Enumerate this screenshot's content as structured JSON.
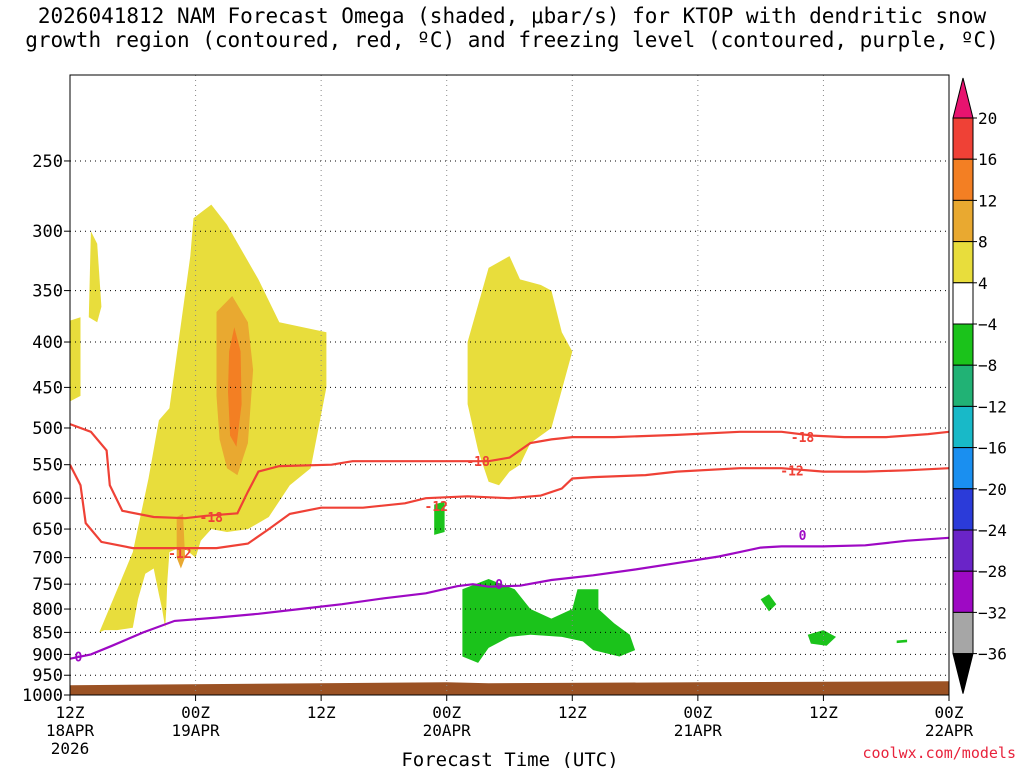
{
  "title_line1": "2026041812 NAM Forecast Omega (shaded, μbar/s) for KTOP with dendritic snow",
  "title_line2": "growth region (contoured, red, ºC) and freezing level (contoured, purple, ºC)",
  "credit": "coolwx.com/models",
  "chart_data": {
    "type": "heatmap",
    "xlabel": "Forecast Time (UTC)",
    "x_ticks": [
      {
        "h": 0,
        "label": "12Z",
        "sub": "18APR",
        "sub2": "2026"
      },
      {
        "h": 12,
        "label": "00Z",
        "sub": "19APR"
      },
      {
        "h": 24,
        "label": "12Z"
      },
      {
        "h": 36,
        "label": "00Z",
        "sub": "20APR"
      },
      {
        "h": 48,
        "label": "12Z"
      },
      {
        "h": 60,
        "label": "00Z",
        "sub": "21APR"
      },
      {
        "h": 72,
        "label": "12Z"
      },
      {
        "h": 84,
        "label": "00Z",
        "sub": "22APR"
      }
    ],
    "xlim_hours": [
      0,
      84
    ],
    "y_ticks": [
      250,
      300,
      350,
      400,
      450,
      500,
      550,
      600,
      650,
      700,
      750,
      800,
      850,
      900,
      950,
      1000
    ],
    "ylim_hpa": [
      200,
      1000
    ],
    "y_scale": "log",
    "colorbar": {
      "levels": [
        20,
        16,
        12,
        8,
        4,
        -4,
        -8,
        -12,
        -16,
        -20,
        -24,
        -28,
        -32,
        -36
      ],
      "colors": [
        "#e8136f",
        "#ef4136",
        "#f37f23",
        "#e9a930",
        "#e8dd3c",
        "#ffffff",
        "#1bc31b",
        "#21b275",
        "#18b9c8",
        "#1a8ff0",
        "#2b3bd9",
        "#6a24c8",
        "#9e09c4",
        "#a6a6a6",
        "#000000"
      ]
    },
    "omega_regions": [
      {
        "sign": "positive",
        "level": 4,
        "color": "#e8dd3c",
        "points": [
          [
            -0.5,
            380
          ],
          [
            1,
            375
          ],
          [
            1,
            460
          ],
          [
            -0.5,
            470
          ]
        ]
      },
      {
        "sign": "positive",
        "level": 4,
        "color": "#e8dd3c",
        "points": [
          [
            2,
            300
          ],
          [
            2.6,
            310
          ],
          [
            3,
            365
          ],
          [
            2.6,
            380
          ],
          [
            1.8,
            375
          ]
        ]
      },
      {
        "sign": "positive",
        "level": 4,
        "color": "#e8dd3c",
        "points": [
          [
            2.8,
            850
          ],
          [
            6,
            690
          ],
          [
            7.5,
            570
          ],
          [
            8.5,
            490
          ],
          [
            9.5,
            475
          ],
          [
            11.5,
            320
          ],
          [
            11.8,
            290
          ],
          [
            13.5,
            280
          ],
          [
            15,
            295
          ],
          [
            18,
            340
          ],
          [
            20,
            380
          ],
          [
            24.5,
            390
          ],
          [
            24.5,
            450
          ],
          [
            23,
            555
          ],
          [
            21,
            580
          ],
          [
            19,
            630
          ],
          [
            17,
            650
          ],
          [
            15,
            655
          ],
          [
            13.5,
            650
          ],
          [
            12.5,
            670
          ],
          [
            12,
            700
          ],
          [
            10.7,
            680
          ],
          [
            9.5,
            690
          ],
          [
            9.3,
            745
          ],
          [
            9.2,
            800
          ],
          [
            9.1,
            840
          ],
          [
            8.8,
            800
          ],
          [
            8.5,
            770
          ],
          [
            8,
            720
          ],
          [
            7.2,
            730
          ],
          [
            6.5,
            780
          ],
          [
            6,
            840
          ],
          [
            4.5,
            845
          ],
          [
            3.3,
            845
          ]
        ]
      },
      {
        "sign": "positive",
        "level": 4,
        "color": "#e8dd3c",
        "points": [
          [
            38,
            400
          ],
          [
            40,
            330
          ],
          [
            42,
            320
          ],
          [
            43,
            340
          ],
          [
            45,
            345
          ],
          [
            46,
            350
          ],
          [
            47,
            390
          ],
          [
            48,
            410
          ],
          [
            46,
            500
          ],
          [
            44,
            520
          ],
          [
            43,
            550
          ],
          [
            42,
            560
          ],
          [
            41,
            580
          ],
          [
            40,
            575
          ],
          [
            39,
            530
          ],
          [
            38,
            470
          ]
        ]
      },
      {
        "sign": "positive",
        "level": 8,
        "color": "#e9a930",
        "points": [
          [
            14,
            370
          ],
          [
            15.5,
            355
          ],
          [
            17,
            380
          ],
          [
            17.5,
            430
          ],
          [
            17,
            520
          ],
          [
            16,
            565
          ],
          [
            15,
            555
          ],
          [
            14.3,
            515
          ],
          [
            14,
            460
          ]
        ]
      },
      {
        "sign": "positive",
        "level": 12,
        "color": "#f37f23",
        "points": [
          [
            15.2,
            410
          ],
          [
            15.7,
            385
          ],
          [
            16.3,
            410
          ],
          [
            16.4,
            470
          ],
          [
            15.9,
            525
          ],
          [
            15.3,
            510
          ],
          [
            15.1,
            455
          ]
        ]
      },
      {
        "sign": "positive",
        "level": 8,
        "color": "#e9a930",
        "points": [
          [
            10.2,
            630
          ],
          [
            10.8,
            625
          ],
          [
            11,
            700
          ],
          [
            10.6,
            720
          ],
          [
            10.2,
            700
          ]
        ]
      },
      {
        "sign": "negative",
        "level": -4,
        "color": "#1bc31b",
        "points": [
          [
            34.8,
            610
          ],
          [
            35.8,
            605
          ],
          [
            35.8,
            655
          ],
          [
            34.8,
            660
          ]
        ]
      },
      {
        "sign": "negative",
        "level": -4,
        "color": "#1bc31b",
        "points": [
          [
            37.5,
            760
          ],
          [
            40,
            740
          ],
          [
            42.5,
            760
          ],
          [
            44,
            800
          ],
          [
            46,
            820
          ],
          [
            48,
            800
          ],
          [
            48.5,
            760
          ],
          [
            50.5,
            760
          ],
          [
            50.5,
            800
          ],
          [
            52,
            830
          ],
          [
            53.5,
            855
          ],
          [
            54,
            890
          ],
          [
            52.5,
            905
          ],
          [
            50,
            890
          ],
          [
            49,
            870
          ],
          [
            47,
            860
          ],
          [
            44,
            855
          ],
          [
            42,
            860
          ],
          [
            40,
            885
          ],
          [
            39,
            920
          ],
          [
            37.5,
            905
          ],
          [
            37.5,
            840
          ]
        ]
      },
      {
        "sign": "negative",
        "level": -4,
        "color": "#1bc31b",
        "points": [
          [
            66,
            780
          ],
          [
            66.8,
            770
          ],
          [
            67.5,
            790
          ],
          [
            66.8,
            805
          ]
        ]
      },
      {
        "sign": "negative",
        "level": -4,
        "color": "#1bc31b",
        "points": [
          [
            70.5,
            855
          ],
          [
            72,
            845
          ],
          [
            73.2,
            860
          ],
          [
            72.3,
            880
          ],
          [
            70.8,
            875
          ]
        ]
      },
      {
        "sign": "negative",
        "level": -4,
        "color": "#1bc31b",
        "points": [
          [
            79,
            868
          ],
          [
            80,
            866
          ],
          [
            80,
            872
          ],
          [
            79,
            874
          ]
        ]
      }
    ],
    "contours": [
      {
        "name": "-18",
        "color": "#ef4136",
        "label_at": [
          [
            13.5,
            630
          ],
          [
            39,
            545
          ],
          [
            70,
            512
          ]
        ],
        "points": [
          [
            0,
            495
          ],
          [
            2,
            505
          ],
          [
            3.5,
            530
          ],
          [
            3.8,
            580
          ],
          [
            5,
            620
          ],
          [
            8,
            630
          ],
          [
            11,
            632
          ],
          [
            13,
            628
          ],
          [
            16,
            624
          ],
          [
            17,
            590
          ],
          [
            18,
            560
          ],
          [
            20,
            552
          ],
          [
            25,
            550
          ],
          [
            27,
            545
          ],
          [
            34,
            545
          ],
          [
            38,
            545
          ],
          [
            40,
            545
          ],
          [
            42,
            540
          ],
          [
            44,
            520
          ],
          [
            46,
            515
          ],
          [
            48,
            512
          ],
          [
            52,
            512
          ],
          [
            58,
            509
          ],
          [
            64,
            505
          ],
          [
            68,
            505
          ],
          [
            71,
            510
          ],
          [
            74,
            512
          ],
          [
            78,
            512
          ],
          [
            82,
            508
          ],
          [
            84,
            505
          ]
        ]
      },
      {
        "name": "-12",
        "color": "#ef4136",
        "label_at": [
          [
            10.5,
            692
          ],
          [
            35,
            612
          ],
          [
            69,
            558
          ]
        ],
        "points": [
          [
            0,
            550
          ],
          [
            1,
            580
          ],
          [
            1.5,
            640
          ],
          [
            3,
            672
          ],
          [
            6,
            683
          ],
          [
            10,
            683
          ],
          [
            14,
            683
          ],
          [
            17,
            675
          ],
          [
            19,
            650
          ],
          [
            21,
            625
          ],
          [
            24,
            615
          ],
          [
            28,
            615
          ],
          [
            32,
            608
          ],
          [
            34,
            600
          ],
          [
            38,
            597
          ],
          [
            42,
            600
          ],
          [
            45,
            596
          ],
          [
            47,
            585
          ],
          [
            48,
            570
          ],
          [
            50,
            568
          ],
          [
            55,
            565
          ],
          [
            58,
            560
          ],
          [
            64,
            555
          ],
          [
            68,
            555
          ],
          [
            72,
            560
          ],
          [
            76,
            560
          ],
          [
            80,
            558
          ],
          [
            84,
            555
          ]
        ]
      },
      {
        "name": "0",
        "color": "#9e09c4",
        "label_at": [
          [
            0.8,
            905
          ],
          [
            41,
            750
          ],
          [
            70,
            660
          ]
        ],
        "points": [
          [
            0,
            910
          ],
          [
            2,
            900
          ],
          [
            4,
            880
          ],
          [
            7,
            850
          ],
          [
            10,
            825
          ],
          [
            14,
            818
          ],
          [
            18,
            810
          ],
          [
            22,
            800
          ],
          [
            26,
            790
          ],
          [
            30,
            778
          ],
          [
            34,
            768
          ],
          [
            37,
            754
          ],
          [
            38.5,
            750
          ],
          [
            40,
            755
          ],
          [
            43,
            753
          ],
          [
            46,
            742
          ],
          [
            50,
            733
          ],
          [
            54,
            722
          ],
          [
            58,
            710
          ],
          [
            62,
            698
          ],
          [
            64,
            690
          ],
          [
            66,
            682
          ],
          [
            68,
            680
          ],
          [
            72,
            680
          ],
          [
            76,
            678
          ],
          [
            80,
            670
          ],
          [
            84,
            665
          ]
        ]
      }
    ],
    "ground_top_hpa": 970
  }
}
